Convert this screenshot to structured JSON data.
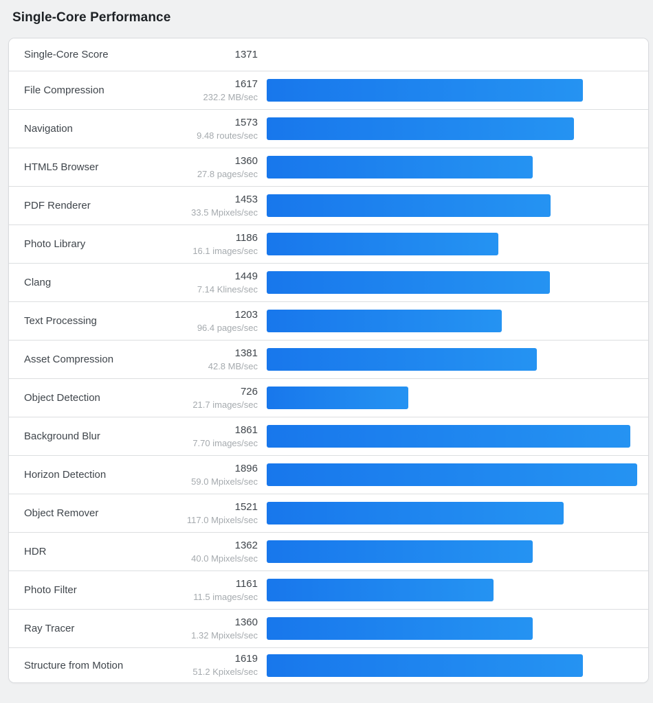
{
  "title": "Single-Core Performance",
  "summary": {
    "label": "Single-Core Score",
    "score": "1371"
  },
  "chart_data": {
    "type": "bar",
    "orientation": "horizontal",
    "title": "Single-Core Performance",
    "summary_label": "Single-Core Score",
    "summary_score": 1371,
    "categories": [
      "File Compression",
      "Navigation",
      "HTML5 Browser",
      "PDF Renderer",
      "Photo Library",
      "Clang",
      "Text Processing",
      "Asset Compression",
      "Object Detection",
      "Background Blur",
      "Horizon Detection",
      "Object Remover",
      "HDR",
      "Photo Filter",
      "Ray Tracer",
      "Structure from Motion"
    ],
    "values": [
      1617,
      1573,
      1360,
      1453,
      1186,
      1449,
      1203,
      1381,
      726,
      1861,
      1896,
      1521,
      1362,
      1161,
      1360,
      1619
    ],
    "throughputs": [
      "232.2 MB/sec",
      "9.48 routes/sec",
      "27.8 pages/sec",
      "33.5 Mpixels/sec",
      "16.1 images/sec",
      "7.14 Klines/sec",
      "96.4 pages/sec",
      "42.8 MB/sec",
      "21.7 images/sec",
      "7.70 images/sec",
      "59.0 Mpixels/sec",
      "117.0 Mpixels/sec",
      "40.0 Mpixels/sec",
      "11.5 images/sec",
      "1.32 Mpixels/sec",
      "51.2 Kpixels/sec"
    ],
    "bar_scale_max": 1896,
    "legend": "none",
    "grid": "off"
  },
  "colors": {
    "page_bg": "#f0f1f2",
    "card_bg": "#ffffff",
    "card_border": "#d8dadd",
    "row_divider": "#dcdee0",
    "title_text": "#1e2226",
    "primary_text": "#3f454b",
    "secondary_text": "#a5aaae",
    "bar_gradient_start": "#1877ec",
    "bar_gradient_end": "#2593f2"
  }
}
